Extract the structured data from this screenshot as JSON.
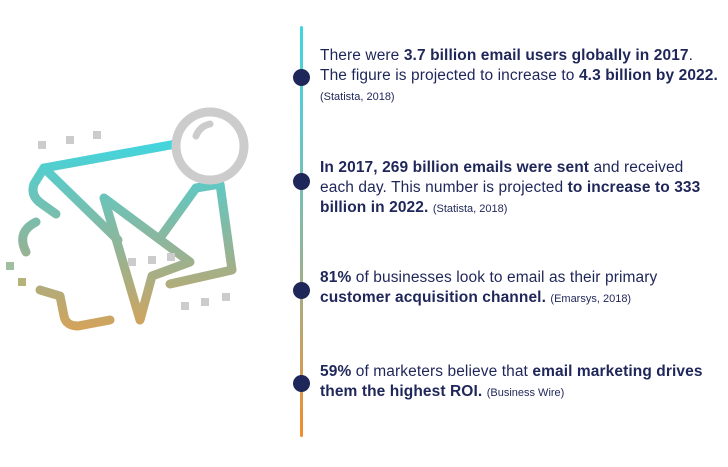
{
  "colors": {
    "navy": "#1f2659",
    "teal": "#3fd6e0",
    "orange": "#f08d2a",
    "gray": "#cccccc"
  },
  "illustration": {
    "icon": "email-envelope-with-send-arrow-icon"
  },
  "facts": [
    {
      "segments": [
        {
          "text": "There were ",
          "bold": false
        },
        {
          "text": "3.7 billion email users globally in 2017",
          "bold": true
        },
        {
          "text": ". The figure is projected to increase to ",
          "bold": false
        },
        {
          "text": "4.3 billion by 2022.",
          "bold": true
        }
      ],
      "source": "(Statista, 2018)"
    },
    {
      "segments": [
        {
          "text": "In 2017, 269 billion emails were sent",
          "bold": true
        },
        {
          "text": " and received each day. This number is projected ",
          "bold": false
        },
        {
          "text": "to increase to 333 billion in 2022.",
          "bold": true
        }
      ],
      "source": "(Statista, 2018)"
    },
    {
      "segments": [
        {
          "text": "81%",
          "bold": true
        },
        {
          "text": " of businesses look to email as their primary ",
          "bold": false
        },
        {
          "text": "customer acquisition channel.",
          "bold": true
        }
      ],
      "source": "(Emarsys, 2018)"
    },
    {
      "segments": [
        {
          "text": "59%",
          "bold": true
        },
        {
          "text": " of marketers believe that ",
          "bold": false
        },
        {
          "text": "email marketing drives them the highest ROI.",
          "bold": true
        }
      ],
      "source": "(Business Wire)"
    }
  ]
}
